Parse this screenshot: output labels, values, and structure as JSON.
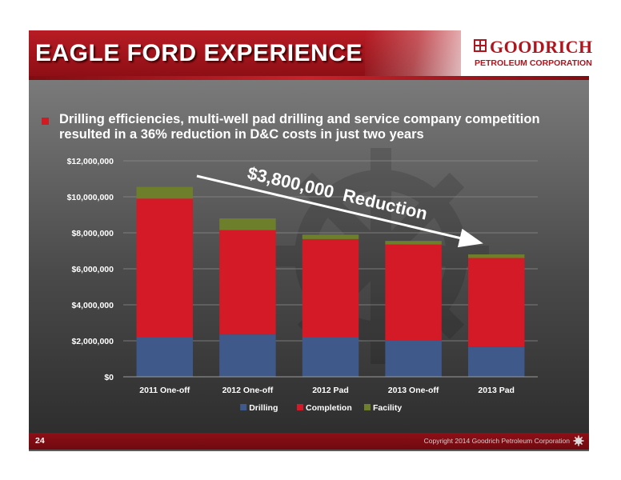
{
  "header": {
    "title": "EAGLE FORD EXPERIENCE",
    "logo_name": "GOODRICH",
    "logo_sub": "PETROLEUM CORPORATION"
  },
  "bullet": {
    "text": "Drilling efficiencies, multi-well pad drilling and service company competition resulted in a 36% reduction in D&C costs in just two years"
  },
  "annotation": {
    "text": "$3,800,000  Reduction"
  },
  "footer": {
    "page_number": "24",
    "copyright": "Copyright 2014 Goodrich Petroleum Corporation"
  },
  "colors": {
    "brand_red": "#b0141c",
    "drilling": "#3f5a8a",
    "completion": "#d41a26",
    "facility": "#6d7f2a"
  },
  "chart_data": {
    "type": "bar",
    "stacked": true,
    "categories": [
      "2011 One-off",
      "2012 One-off",
      "2012 Pad",
      "2013 One-off",
      "2013 Pad"
    ],
    "series": [
      {
        "name": "Drilling",
        "values": [
          2200000,
          2350000,
          2200000,
          2000000,
          1650000
        ]
      },
      {
        "name": "Completion",
        "values": [
          7700000,
          5800000,
          5450000,
          5350000,
          4950000
        ]
      },
      {
        "name": "Facility",
        "values": [
          650000,
          650000,
          250000,
          200000,
          200000
        ]
      }
    ],
    "ylim": [
      0,
      12000000
    ],
    "yticks": [
      "$0",
      "$2,000,000",
      "$4,000,000",
      "$6,000,000",
      "$8,000,000",
      "$10,000,000",
      "$12,000,000"
    ],
    "grid": true,
    "legend_position": "bottom"
  }
}
